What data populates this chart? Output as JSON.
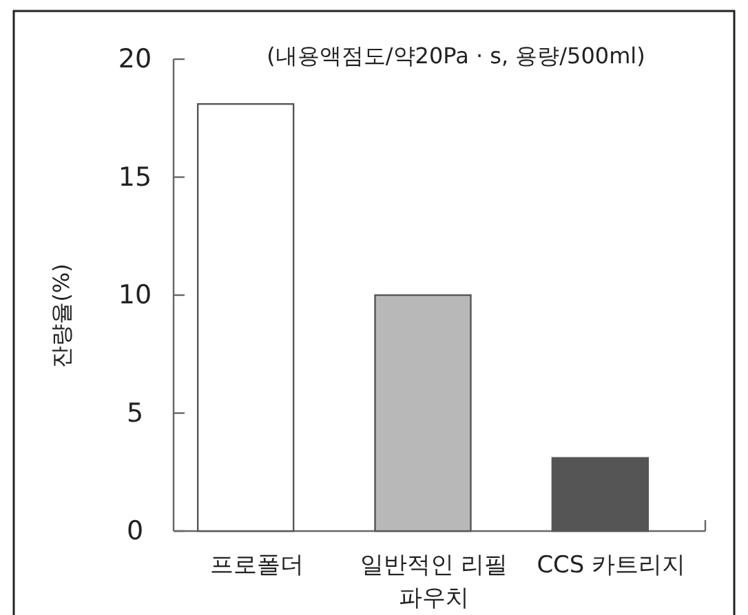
{
  "chart_data": {
    "type": "bar",
    "title": "(내용액점도/약20Pa · s, 용량/500ml)",
    "ylabel": "잔량율(%)",
    "categories": [
      "프로폴더",
      "일반적인 리필 파우치",
      "CCS 카트리지"
    ],
    "values": [
      18.1,
      10,
      3.1
    ],
    "colors": [
      "#ffffff",
      "#b8b8b8",
      "#555555"
    ],
    "ylim": [
      0,
      20
    ],
    "yticks": [
      0,
      5,
      10,
      15,
      20
    ]
  }
}
